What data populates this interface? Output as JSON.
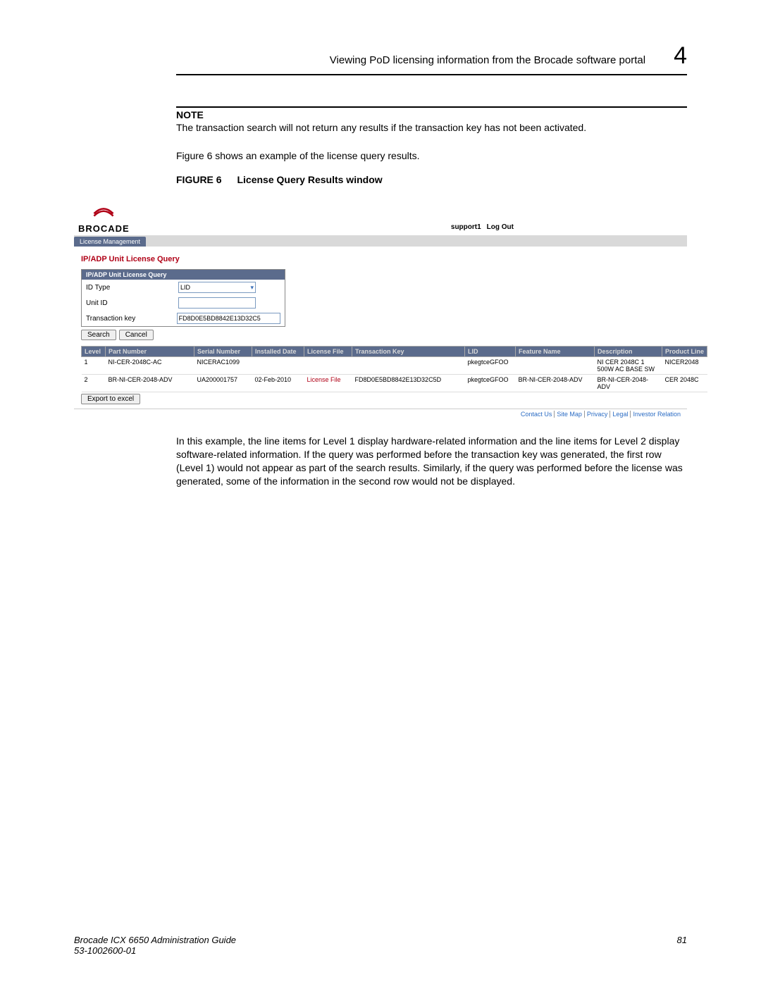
{
  "header": {
    "title": "Viewing PoD licensing information from the Brocade software portal",
    "chapter": "4"
  },
  "note": {
    "label": "NOTE",
    "text": "The transaction search will not return any results if the transaction key has not been activated."
  },
  "intro_para": "Figure 6 shows an example of the license query results.",
  "figure": {
    "label": "FIGURE 6",
    "title": "License Query Results window"
  },
  "screenshot": {
    "brand": "BROCADE",
    "logo_color": "#b00016",
    "user_label": "support1",
    "logout": "Log Out",
    "tab": "License Management",
    "section_title": "IP/ADP Unit License Query",
    "form": {
      "heading": "IP/ADP Unit License Query",
      "rows": [
        {
          "label": "ID Type",
          "type": "select",
          "value": "LID"
        },
        {
          "label": "Unit ID",
          "type": "input",
          "value": ""
        },
        {
          "label": "Transaction key",
          "type": "input-long",
          "value": "FD8D0E5BD8842E13D32C5"
        }
      ],
      "buttons": {
        "search": "Search",
        "cancel": "Cancel"
      }
    },
    "table": {
      "columns": [
        "Level",
        "Part Number",
        "Serial Number",
        "Installed Date",
        "License File",
        "Transaction Key",
        "LID",
        "Feature Name",
        "Description",
        "Product Line"
      ],
      "col_widths": [
        "34px",
        "126px",
        "82px",
        "74px",
        "68px",
        "160px",
        "72px",
        "112px",
        "96px",
        "64px"
      ],
      "rows": [
        {
          "cells": [
            "1",
            "NI-CER-2048C-AC",
            "NICERAC1099",
            "",
            "",
            "",
            "pkegtceGFOO",
            "",
            "NI CER 2048C 1 500W AC BASE SW",
            "NICER2048"
          ],
          "link_col": null
        },
        {
          "cells": [
            "2",
            "BR-NI-CER-2048-ADV",
            "UA200001757",
            "02-Feb-2010",
            "License File",
            "FD8D0E5BD8842E13D32C5D",
            "pkegtceGFOO",
            "BR-NI-CER-2048-ADV",
            "BR-NI-CER-2048-ADV",
            "CER 2048C"
          ],
          "link_col": 4
        }
      ]
    },
    "export": "Export to excel",
    "footer_links": [
      "Contact Us",
      "Site Map",
      "Privacy",
      "Legal",
      "Investor Relation"
    ]
  },
  "after_para": "In this example, the line items for Level 1 display hardware-related information and the line items for Level 2 display software-related information. If the query was performed before the transaction key was generated, the first row (Level 1) would not appear as part of the search results. Similarly, if the query was performed before the license was generated, some of the information in the second row would not be displayed.",
  "footer": {
    "guide": "Brocade ICX 6650 Administration Guide",
    "docnum": "53-1002600-01",
    "page": "81"
  }
}
